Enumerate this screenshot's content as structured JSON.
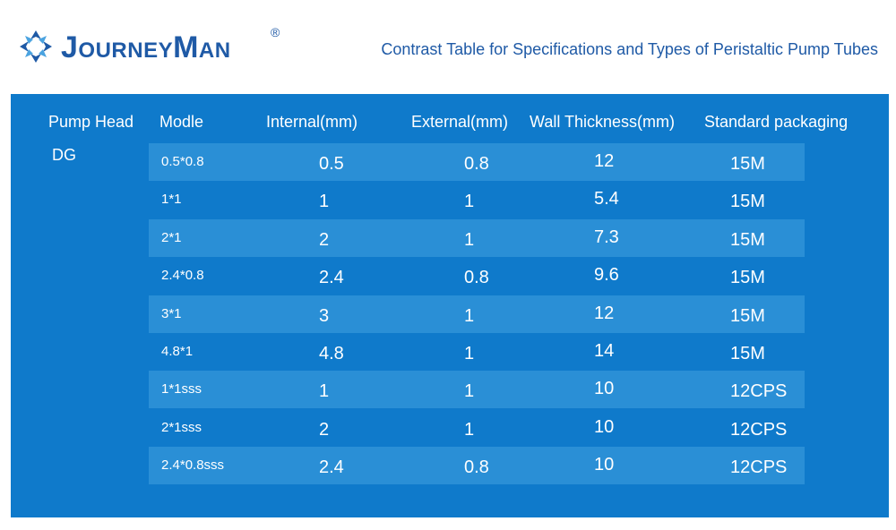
{
  "brand": {
    "name": "JourneyMan",
    "registered": "®"
  },
  "title": "Contrast Table for Specifications and Types of Peristaltic Pump Tubes",
  "table": {
    "headers": [
      "Pump Head",
      "Modle",
      "Internal(mm)",
      "External(mm)",
      "Wall Thickness(mm)",
      "Standard packaging"
    ],
    "pump_head": "DG",
    "rows": [
      {
        "model": "0.5*0.8",
        "internal": "0.5",
        "external": "0.8",
        "wall": "12",
        "packaging": "15M"
      },
      {
        "model": "1*1",
        "internal": "1",
        "external": "1",
        "wall": "5.4",
        "packaging": "15M"
      },
      {
        "model": "2*1",
        "internal": "2",
        "external": "1",
        "wall": "7.3",
        "packaging": "15M"
      },
      {
        "model": "2.4*0.8",
        "internal": "2.4",
        "external": "0.8",
        "wall": "9.6",
        "packaging": "15M"
      },
      {
        "model": "3*1",
        "internal": "3",
        "external": "1",
        "wall": "12",
        "packaging": "15M"
      },
      {
        "model": "4.8*1",
        "internal": "4.8",
        "external": "1",
        "wall": "14",
        "packaging": "15M"
      },
      {
        "model": "1*1sss",
        "internal": "1",
        "external": "1",
        "wall": "10",
        "packaging": "12CPS"
      },
      {
        "model": "2*1sss",
        "internal": "2",
        "external": "1",
        "wall": "10",
        "packaging": "12CPS"
      },
      {
        "model": "2.4*0.8sss",
        "internal": "2.4",
        "external": "0.8",
        "wall": "10",
        "packaging": "12CPS"
      }
    ]
  },
  "colors": {
    "brand_blue": "#1f5aa6",
    "panel_blue": "#0f7acb",
    "row_light": "#2a8fd6"
  }
}
